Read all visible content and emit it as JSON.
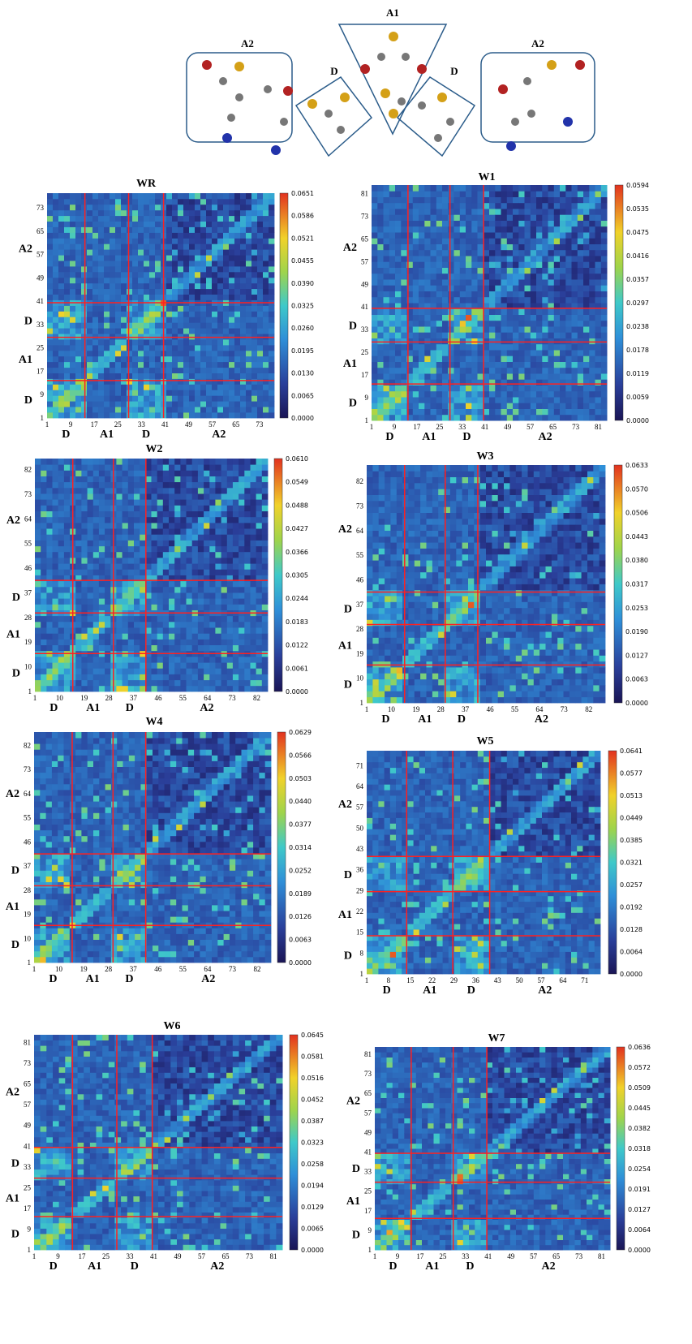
{
  "molecule": {
    "labels": [
      "A2",
      "D",
      "A1",
      "D",
      "A2"
    ]
  },
  "chart_data": [
    {
      "type": "heatmap",
      "title": "WR",
      "xticks": [
        "1",
        "9",
        "17",
        "25",
        "33",
        "41",
        "49",
        "57",
        "65",
        "73"
      ],
      "yticks": [
        "1",
        "9",
        "17",
        "25",
        "33",
        "41",
        "49",
        "57",
        "65",
        "73"
      ],
      "ytick_top_text": "65",
      "x_regions": [
        "D",
        "A1",
        "D",
        "A2"
      ],
      "y_regions": [
        "D",
        "A1",
        "D",
        "A2"
      ],
      "colorbar_ticks": [
        "0.0651",
        "0.0586",
        "0.0521",
        "0.0455",
        "0.0390",
        "0.0325",
        "0.0260",
        "0.0195",
        "0.0130",
        "0.0065",
        "0.0000"
      ],
      "range": [
        0.0,
        0.0651
      ],
      "n": 78,
      "boundaries": [
        13,
        28,
        40
      ]
    },
    {
      "type": "heatmap",
      "title": "W1",
      "xticks": [
        "1",
        "9",
        "17",
        "25",
        "33",
        "41",
        "49",
        "57",
        "65",
        "73",
        "81"
      ],
      "yticks": [
        "1",
        "9",
        "17",
        "25",
        "33",
        "41",
        "49",
        "57",
        "65",
        "73",
        "81"
      ],
      "x_regions": [
        "D",
        "A1",
        "D",
        "A2"
      ],
      "y_regions": [
        "D",
        "A1",
        "D",
        "A2"
      ],
      "colorbar_ticks": [
        "0.0594",
        "0.0535",
        "0.0475",
        "0.0416",
        "0.0357",
        "0.0297",
        "0.0238",
        "0.0178",
        "0.0119",
        "0.0059",
        "0.0000"
      ],
      "range": [
        0.0,
        0.0594
      ],
      "n": 84,
      "boundaries": [
        13,
        28,
        40
      ]
    },
    {
      "type": "heatmap",
      "title": "W2",
      "xticks": [
        "1",
        "10",
        "19",
        "28",
        "37",
        "46",
        "55",
        "64",
        "73",
        "82"
      ],
      "yticks": [
        "1",
        "10",
        "19",
        "28",
        "37",
        "46",
        "55",
        "64",
        "73",
        "82"
      ],
      "x_regions": [
        "D",
        "A1",
        "D",
        "A2"
      ],
      "y_regions": [
        "D",
        "A1",
        "D",
        "A2"
      ],
      "colorbar_ticks": [
        "0.0610",
        "0.0549",
        "0.0488",
        "0.0427",
        "0.0366",
        "0.0305",
        "0.0244",
        "0.0183",
        "0.0122",
        "0.0061",
        "0.0000"
      ],
      "range": [
        0.0,
        0.061
      ],
      "n": 86,
      "boundaries": [
        14,
        29,
        41
      ]
    },
    {
      "type": "heatmap",
      "title": "W3",
      "xticks": [
        "1",
        "10",
        "19",
        "28",
        "37",
        "46",
        "55",
        "64",
        "73",
        "82"
      ],
      "yticks": [
        "1",
        "10",
        "19",
        "28",
        "37",
        "46",
        "55",
        "64",
        "73",
        "82"
      ],
      "x_regions": [
        "D",
        "A1",
        "D",
        "A2"
      ],
      "y_regions": [
        "D",
        "A1",
        "D",
        "A2"
      ],
      "colorbar_ticks": [
        "0.0633",
        "0.0570",
        "0.0506",
        "0.0443",
        "0.0380",
        "0.0317",
        "0.0253",
        "0.0190",
        "0.0127",
        "0.0063",
        "0.0000"
      ],
      "range": [
        0.0,
        0.0633
      ],
      "n": 88,
      "boundaries": [
        14,
        29,
        41
      ]
    },
    {
      "type": "heatmap",
      "title": "W4",
      "xticks": [
        "1",
        "10",
        "19",
        "28",
        "37",
        "46",
        "55",
        "64",
        "73",
        "82"
      ],
      "yticks": [
        "1",
        "10",
        "19",
        "28",
        "37",
        "46",
        "55",
        "64",
        "73",
        "82"
      ],
      "x_regions": [
        "D",
        "A1",
        "D",
        "A2"
      ],
      "y_regions": [
        "D",
        "A1",
        "D",
        "A2"
      ],
      "colorbar_ticks": [
        "0.0629",
        "0.0566",
        "0.0503",
        "0.0440",
        "0.0377",
        "0.0314",
        "0.0252",
        "0.0189",
        "0.0126",
        "0.0063",
        "0.0000"
      ],
      "range": [
        0.0,
        0.0629
      ],
      "n": 87,
      "boundaries": [
        14,
        29,
        41
      ]
    },
    {
      "type": "heatmap",
      "title": "W5",
      "xticks": [
        "1",
        "8",
        "15",
        "22",
        "29",
        "36",
        "43",
        "50",
        "57",
        "64",
        "71"
      ],
      "yticks": [
        "1",
        "8",
        "15",
        "22",
        "29",
        "36",
        "43",
        "50",
        "57",
        "64",
        "71"
      ],
      "x_regions": [
        "D",
        "A1",
        "D",
        "A2"
      ],
      "y_regions": [
        "D",
        "A1",
        "D",
        "A2"
      ],
      "colorbar_ticks": [
        "0.0641",
        "0.0577",
        "0.0513",
        "0.0449",
        "0.0385",
        "0.0321",
        "0.0257",
        "0.0192",
        "0.0128",
        "0.0064",
        "0.0000"
      ],
      "range": [
        0.0,
        0.0641
      ],
      "n": 76,
      "boundaries": [
        13,
        28,
        40
      ]
    },
    {
      "type": "heatmap",
      "title": "W6",
      "xticks": [
        "1",
        "9",
        "17",
        "25",
        "33",
        "41",
        "49",
        "57",
        "65",
        "73",
        "81"
      ],
      "yticks": [
        "1",
        "9",
        "17",
        "25",
        "33",
        "41",
        "49",
        "57",
        "65",
        "73",
        "81"
      ],
      "x_regions": [
        "D",
        "A1",
        "D",
        "A2"
      ],
      "y_regions": [
        "D",
        "A1",
        "D",
        "A2"
      ],
      "colorbar_ticks": [
        "0.0645",
        "0.0581",
        "0.0516",
        "0.0452",
        "0.0387",
        "0.0323",
        "0.0258",
        "0.0194",
        "0.0129",
        "0.0065",
        "0.0000"
      ],
      "range": [
        0.0,
        0.0645
      ],
      "n": 84,
      "boundaries": [
        13,
        28,
        40
      ]
    },
    {
      "type": "heatmap",
      "title": "W7",
      "xticks": [
        "1",
        "9",
        "17",
        "25",
        "33",
        "41",
        "49",
        "57",
        "65",
        "73",
        "81"
      ],
      "yticks": [
        "1",
        "9",
        "17",
        "25",
        "33",
        "41",
        "49",
        "57",
        "65",
        "73",
        "81"
      ],
      "x_regions": [
        "D",
        "A1",
        "D",
        "A2"
      ],
      "y_regions": [
        "D",
        "A1",
        "D",
        "A2"
      ],
      "colorbar_ticks": [
        "0.0636",
        "0.0572",
        "0.0509",
        "0.0445",
        "0.0382",
        "0.0318",
        "0.0254",
        "0.0191",
        "0.0127",
        "0.0064",
        "0.0000"
      ],
      "range": [
        0.0,
        0.0636
      ],
      "n": 84,
      "boundaries": [
        13,
        28,
        40
      ]
    }
  ]
}
